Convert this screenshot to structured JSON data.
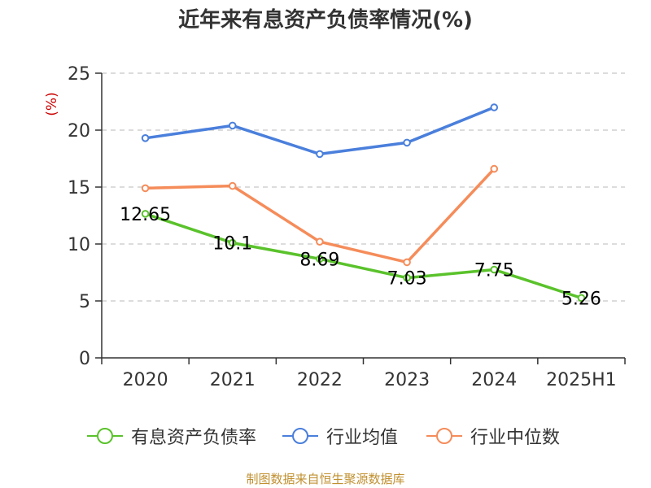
{
  "title": "近年来有息资产负债率情况(%)",
  "source_note": "制图数据来自恒生聚源数据库",
  "colors": {
    "debt_ratio": "#5ac22b",
    "industry_avg": "#4a7fdc",
    "industry_median": "#f58c5a",
    "axis": "#333333",
    "grid": "#c8c8c8",
    "ylabel": "#cc0000",
    "source": "#c09030"
  },
  "chart_data": {
    "type": "line",
    "title": "近年来有息资产负债率情况(%)",
    "xlabel": "",
    "ylabel": "(%)",
    "categories": [
      "2020",
      "2021",
      "2022",
      "2023",
      "2024",
      "2025H1"
    ],
    "ylim": [
      0,
      25
    ],
    "yticks": [
      "0",
      "5",
      "10",
      "15",
      "20",
      "25"
    ],
    "grid": "horizontal dashed",
    "legend_position": "bottom",
    "series": [
      {
        "name": "有息资产负债率",
        "values": [
          12.65,
          10.1,
          8.69,
          7.03,
          7.75,
          5.26
        ],
        "labels": [
          "12.65",
          "10.1",
          "8.69",
          "7.03",
          "7.75",
          "5.26"
        ]
      },
      {
        "name": "行业均值",
        "values": [
          19.3,
          20.4,
          17.9,
          18.9,
          22.0,
          null
        ]
      },
      {
        "name": "行业中位数",
        "values": [
          14.9,
          15.1,
          10.2,
          8.4,
          16.6,
          null
        ]
      }
    ]
  }
}
